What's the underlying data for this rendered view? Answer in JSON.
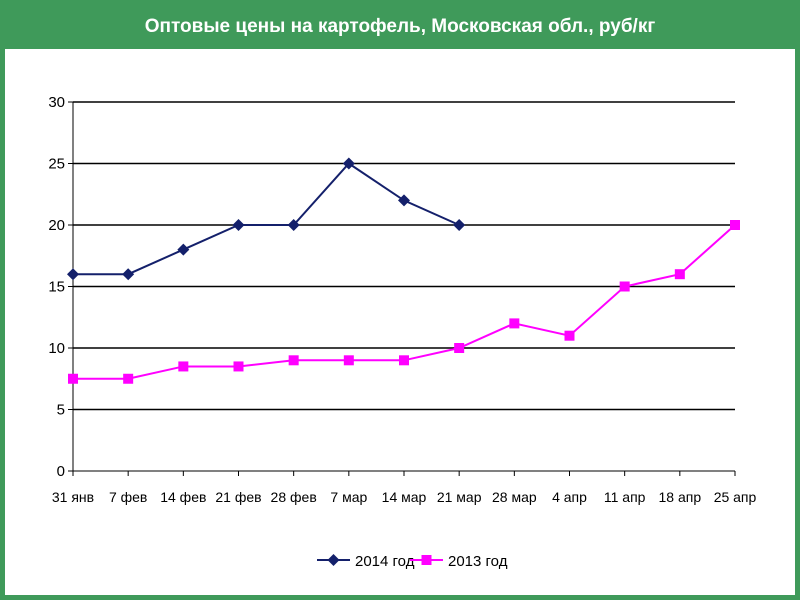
{
  "colors": {
    "frame": "#3f9a5a",
    "title_text": "#ffffff",
    "series_2014": "#14206b",
    "series_2013": "#ff00ff"
  },
  "chart_data": {
    "type": "line",
    "title": "Оптовые цены на картофель, Московская обл., руб/кг",
    "xlabel": "",
    "ylabel": "",
    "ylim": [
      0,
      30
    ],
    "yticks": [
      0,
      5,
      10,
      15,
      20,
      25,
      30
    ],
    "grid": true,
    "legend_position": "bottom",
    "categories": [
      "31 янв",
      "7 фев",
      "14 фев",
      "21 фев",
      "28 фев",
      "7 мар",
      "14 мар",
      "21 мар",
      "28 мар",
      "4 апр",
      "11 апр",
      "18 апр",
      "25 апр"
    ],
    "series": [
      {
        "name": "2014 год",
        "marker": "diamond",
        "color": "#14206b",
        "values": [
          16,
          16,
          18,
          20,
          20,
          25,
          22,
          20,
          null,
          null,
          null,
          null,
          null
        ]
      },
      {
        "name": "2013 год",
        "marker": "square",
        "color": "#ff00ff",
        "values": [
          7.5,
          7.5,
          8.5,
          8.5,
          9,
          9,
          9,
          10,
          12,
          11,
          15,
          16,
          20
        ]
      }
    ]
  }
}
